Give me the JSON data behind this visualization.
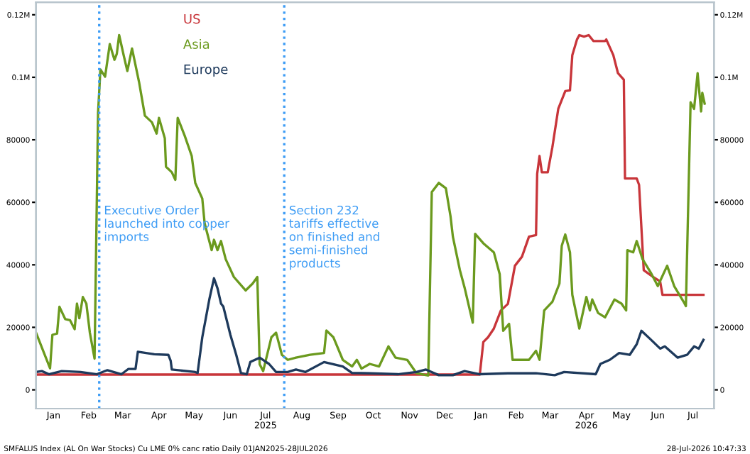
{
  "chart_data": {
    "type": "line",
    "xlim": [
      "2025-01-01",
      "2026-08-03"
    ],
    "xticks": [
      {
        "value": "2025-01-16",
        "label": "Jan"
      },
      {
        "value": "2025-02-15",
        "label": "Feb"
      },
      {
        "value": "2025-03-16",
        "label": "Mar"
      },
      {
        "value": "2025-04-16",
        "label": "Apr"
      },
      {
        "value": "2025-05-16",
        "label": "May"
      },
      {
        "value": "2025-06-16",
        "label": "Jun"
      },
      {
        "value": "2025-07-16",
        "label": "Jul\n2025"
      },
      {
        "value": "2025-08-16",
        "label": "Aug"
      },
      {
        "value": "2025-09-16",
        "label": "Sep"
      },
      {
        "value": "2025-10-16",
        "label": "Oct"
      },
      {
        "value": "2025-11-16",
        "label": "Nov"
      },
      {
        "value": "2025-12-16",
        "label": "Dec"
      },
      {
        "value": "2026-01-16",
        "label": "Jan"
      },
      {
        "value": "2026-02-15",
        "label": "Feb"
      },
      {
        "value": "2026-03-16",
        "label": "Mar"
      },
      {
        "value": "2026-04-16",
        "label": "Apr\n2026"
      },
      {
        "value": "2026-05-16",
        "label": "May"
      },
      {
        "value": "2026-06-16",
        "label": "Jun"
      },
      {
        "value": "2026-07-16",
        "label": "Jul"
      }
    ],
    "ylim": [
      -6000,
      124000
    ],
    "yticks": [
      0,
      20000,
      40000,
      60000,
      80000,
      {
        "value": 100000,
        "label": "0.1M"
      },
      {
        "value": 120000,
        "label": "0.12M"
      }
    ],
    "y2lim": [
      -6000,
      124000
    ],
    "y2ticks": [
      0,
      20000,
      40000,
      60000,
      80000,
      {
        "value": 100000,
        "label": "0.1M"
      },
      {
        "value": 120000,
        "label": "0.12M"
      }
    ],
    "legend": "top left",
    "grid": false,
    "series": [
      {
        "name": "US",
        "color": "#c8353a",
        "x": [
          "2025-01-01",
          "2026-01-15",
          "2026-01-18",
          "2026-01-22",
          "2026-01-27",
          "2026-02-02",
          "2026-02-08",
          "2026-02-14",
          "2026-02-20",
          "2026-02-26",
          "2026-03-04",
          "2026-03-05",
          "2026-03-07",
          "2026-03-09",
          "2026-03-14",
          "2026-03-18",
          "2026-03-23",
          "2026-03-29",
          "2026-04-02",
          "2026-04-04",
          "2026-04-08",
          "2026-04-10",
          "2026-04-14",
          "2026-04-18",
          "2026-04-22",
          "2026-05-02",
          "2026-05-03",
          "2026-05-09",
          "2026-05-13",
          "2026-05-18",
          "2026-05-19",
          "2026-05-29",
          "2026-05-31",
          "2026-06-04",
          "2026-06-12",
          "2026-06-18",
          "2026-06-20",
          "2026-07-25"
        ],
        "values": [
          4900,
          4900,
          15300,
          16800,
          19600,
          25400,
          27500,
          39700,
          42600,
          49000,
          49500,
          69100,
          74800,
          69600,
          69600,
          77700,
          89900,
          95600,
          95800,
          107100,
          112100,
          113500,
          113000,
          113500,
          111600,
          111600,
          112100,
          107100,
          101300,
          99200,
          67600,
          67600,
          65600,
          38300,
          36100,
          34700,
          30400,
          30400
        ]
      },
      {
        "name": "Asia",
        "color": "#6b9a1e",
        "x": [
          "2025-01-01",
          "2025-01-13",
          "2025-01-15",
          "2025-01-19",
          "2025-01-21",
          "2025-01-26",
          "2025-01-30",
          "2025-02-03",
          "2025-02-05",
          "2025-02-07",
          "2025-02-10",
          "2025-02-13",
          "2025-02-16",
          "2025-02-20",
          "2025-02-23",
          "2025-02-25",
          "2025-03-01",
          "2025-03-05",
          "2025-03-09",
          "2025-03-11",
          "2025-03-13",
          "2025-03-17",
          "2025-03-20",
          "2025-03-24",
          "2025-03-30",
          "2025-04-04",
          "2025-04-10",
          "2025-04-14",
          "2025-04-16",
          "2025-04-21",
          "2025-04-22",
          "2025-04-27",
          "2025-04-30",
          "2025-05-02",
          "2025-05-08",
          "2025-05-14",
          "2025-05-17",
          "2025-05-23",
          "2025-05-25",
          "2025-05-31",
          "2025-06-02",
          "2025-06-05",
          "2025-06-08",
          "2025-06-12",
          "2025-06-19",
          "2025-06-29",
          "2025-07-05",
          "2025-07-09",
          "2025-07-11",
          "2025-07-14",
          "2025-07-21",
          "2025-07-25",
          "2025-07-30",
          "2025-08-04",
          "2025-08-11",
          "2025-08-23",
          "2025-09-04",
          "2025-09-06",
          "2025-09-12",
          "2025-09-20",
          "2025-09-28",
          "2025-10-02",
          "2025-10-06",
          "2025-10-13",
          "2025-10-21",
          "2025-10-29",
          "2025-11-04",
          "2025-11-14",
          "2025-11-22",
          "2025-12-02",
          "2025-12-05",
          "2025-12-11",
          "2025-12-17",
          "2025-12-21",
          "2025-12-23",
          "2025-12-29",
          "2026-01-02",
          "2026-01-09",
          "2026-01-11",
          "2026-01-18",
          "2026-01-27",
          "2026-02-01",
          "2026-02-04",
          "2026-02-09",
          "2026-02-12",
          "2026-02-26",
          "2026-03-04",
          "2026-03-07",
          "2026-03-11",
          "2026-03-18",
          "2026-03-24",
          "2026-03-26",
          "2026-03-29",
          "2026-04-02",
          "2026-04-04",
          "2026-04-10",
          "2026-04-16",
          "2026-04-19",
          "2026-04-21",
          "2026-04-26",
          "2026-05-02",
          "2026-05-10",
          "2026-05-16",
          "2026-05-20",
          "2026-05-21",
          "2026-05-26",
          "2026-05-29",
          "2026-06-03",
          "2026-06-10",
          "2026-06-16",
          "2026-06-24",
          "2026-06-30",
          "2026-07-08",
          "2026-07-10",
          "2026-07-14",
          "2026-07-17",
          "2026-07-20",
          "2026-07-23",
          "2026-07-24",
          "2026-07-26"
        ],
        "values": [
          18300,
          6900,
          17600,
          18000,
          26600,
          22600,
          22300,
          19400,
          27600,
          22900,
          29700,
          27600,
          18300,
          10000,
          88600,
          102500,
          100200,
          110600,
          105600,
          107500,
          113500,
          106800,
          102000,
          109200,
          98500,
          87700,
          85600,
          82000,
          87000,
          80500,
          71400,
          69600,
          67200,
          87000,
          81300,
          74800,
          66200,
          61200,
          53300,
          44700,
          48000,
          44700,
          47600,
          41800,
          36100,
          31800,
          34000,
          36100,
          8200,
          6000,
          16800,
          18300,
          11200,
          9600,
          10300,
          11200,
          11800,
          19000,
          16800,
          9600,
          7500,
          9600,
          6800,
          8300,
          7500,
          13900,
          10300,
          9600,
          5300,
          4600,
          63300,
          66200,
          64500,
          55500,
          49000,
          38300,
          32700,
          21500,
          49900,
          46900,
          44000,
          37000,
          18900,
          21100,
          9600,
          9600,
          12500,
          9600,
          25400,
          28200,
          34000,
          46100,
          49700,
          44000,
          30400,
          19600,
          29700,
          25400,
          28900,
          24600,
          23200,
          28900,
          27600,
          25400,
          44700,
          44000,
          47600,
          41800,
          37500,
          33200,
          39700,
          33200,
          28200,
          26800,
          92000,
          89900,
          101300,
          89100,
          95000,
          91600
        ]
      },
      {
        "name": "Europe",
        "color": "#1e3a5c",
        "x": [
          "2025-01-01",
          "2025-01-06",
          "2025-01-12",
          "2025-01-23",
          "2025-02-08",
          "2025-02-22",
          "2025-03-03",
          "2025-03-15",
          "2025-03-21",
          "2025-03-27",
          "2025-03-29",
          "2025-04-12",
          "2025-04-24",
          "2025-04-26",
          "2025-04-27",
          "2025-05-17",
          "2025-05-19",
          "2025-05-23",
          "2025-05-29",
          "2025-06-02",
          "2025-06-05",
          "2025-06-08",
          "2025-06-10",
          "2025-06-16",
          "2025-06-21",
          "2025-06-25",
          "2025-06-30",
          "2025-07-03",
          "2025-07-11",
          "2025-07-19",
          "2025-07-25",
          "2025-08-04",
          "2025-08-11",
          "2025-08-19",
          "2025-09-04",
          "2025-09-20",
          "2025-09-28",
          "2025-10-13",
          "2025-11-06",
          "2025-11-22",
          "2025-11-30",
          "2025-12-11",
          "2025-12-23",
          "2026-01-02",
          "2026-01-15",
          "2026-02-08",
          "2026-03-04",
          "2026-03-20",
          "2026-03-28",
          "2026-04-24",
          "2026-04-28",
          "2026-05-06",
          "2026-05-14",
          "2026-05-23",
          "2026-05-29",
          "2026-06-02",
          "2026-06-10",
          "2026-06-18",
          "2026-06-22",
          "2026-07-03",
          "2026-07-11",
          "2026-07-17",
          "2026-07-21",
          "2026-07-25"
        ],
        "values": [
          5700,
          6000,
          5000,
          6000,
          5700,
          5000,
          6300,
          5000,
          6700,
          6700,
          12200,
          11400,
          11200,
          9300,
          6500,
          5700,
          5400,
          16800,
          28900,
          35700,
          32500,
          27600,
          26600,
          17600,
          11200,
          5400,
          5000,
          8900,
          10300,
          8300,
          5700,
          5700,
          6500,
          5700,
          8900,
          7500,
          5400,
          5300,
          5000,
          5700,
          6500,
          4700,
          4700,
          6000,
          5000,
          5300,
          5300,
          4700,
          5700,
          5000,
          8300,
          9600,
          11800,
          11200,
          14600,
          18900,
          16100,
          13200,
          13900,
          10300,
          11200,
          13900,
          13200,
          16000
        ]
      }
    ],
    "ref_lines": [
      {
        "axis": "x",
        "value": "2025-02-24",
        "label": "Executive Order\nlaunched into copper\nimports",
        "color": "#3d9cf5",
        "line_style": "dotted"
      },
      {
        "axis": "x",
        "value": "2025-08-01",
        "label": "Section 232\ntariffs effective\non finished and\nsemi-finished\nproducts",
        "color": "#3d9cf5",
        "line_style": "dotted"
      }
    ],
    "annotations": [
      "SMFALUS Index (AL On War Stocks) Cu LME 0% canc ratio Daily 01JAN2025-28JUL2026",
      "28-Jul-2026 10:47:33"
    ]
  }
}
